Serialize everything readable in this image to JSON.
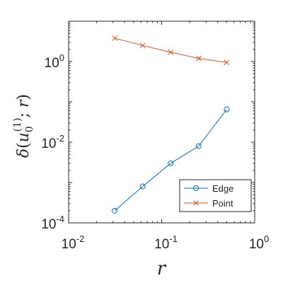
{
  "chart_data": {
    "type": "line",
    "x_scale": "log",
    "y_scale": "log",
    "xlim": [
      0.01,
      1
    ],
    "ylim": [
      0.0001,
      10
    ],
    "x_ticks": [
      {
        "base": "10",
        "exp": "-2"
      },
      {
        "base": "10",
        "exp": "-1"
      },
      {
        "base": "10",
        "exp": "0"
      }
    ],
    "y_ticks": [
      {
        "base": "10",
        "exp": "-4"
      },
      {
        "base": "10",
        "exp": "-2"
      },
      {
        "base": "10",
        "exp": "0"
      }
    ],
    "xlabel": "r",
    "ylabel_parts": {
      "delta": "δ",
      "open": "(",
      "u": "u",
      "sub": "0",
      "sup": "(1)",
      "sep": "; ",
      "r": "r",
      "close": ")"
    },
    "grid": false,
    "legend_position": "bottom-right",
    "series": [
      {
        "name": "Edge",
        "color": "#0072bd",
        "marker": "circle",
        "x": [
          0.03125,
          0.0625,
          0.125,
          0.25,
          0.5
        ],
        "y": [
          0.0002,
          0.0008,
          0.003,
          0.008,
          0.065
        ]
      },
      {
        "name": "Point",
        "color": "#d95319",
        "marker": "x",
        "x": [
          0.03125,
          0.0625,
          0.125,
          0.25,
          0.5
        ],
        "y": [
          3.8,
          2.5,
          1.7,
          1.2,
          0.95
        ]
      }
    ]
  }
}
